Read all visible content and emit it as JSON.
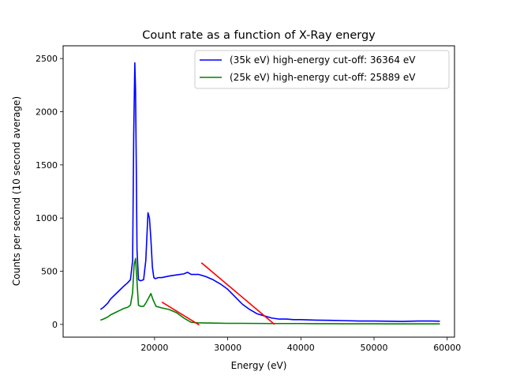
{
  "chart_data": {
    "type": "line",
    "title": "Count rate as a function of X-Ray energy",
    "xlabel": "Energy (eV)",
    "ylabel": "Counts per second (10 second average)",
    "xlim": [
      7500,
      61000
    ],
    "ylim": [
      -120,
      2620
    ],
    "xticks": [
      20000,
      30000,
      40000,
      50000,
      60000
    ],
    "yticks": [
      0,
      500,
      1000,
      1500,
      2000,
      2500
    ],
    "grid": false,
    "legend": "top-right",
    "series": [
      {
        "name": "(35k eV) high-energy cut-off: 36364 eV",
        "color": "#0000ff",
        "x": [
          12600,
          13000,
          13600,
          14000,
          14600,
          15200,
          15800,
          16300,
          16700,
          17000,
          17150,
          17300,
          17400,
          17500,
          17600,
          17800,
          18100,
          18500,
          18800,
          19100,
          19300,
          19500,
          19700,
          19900,
          20100,
          20500,
          21000,
          22000,
          23000,
          24000,
          24500,
          25000,
          26000,
          27000,
          28000,
          29000,
          30000,
          31000,
          32000,
          33000,
          34000,
          35000,
          36000,
          37000,
          38000,
          39000,
          40000,
          42000,
          44000,
          46000,
          48000,
          50000,
          52000,
          54000,
          56000,
          58000,
          59000
        ],
        "y": [
          140,
          160,
          200,
          240,
          280,
          320,
          360,
          390,
          420,
          600,
          1800,
          2460,
          2200,
          1500,
          700,
          420,
          410,
          420,
          600,
          1050,
          1000,
          800,
          540,
          440,
          430,
          440,
          440,
          455,
          465,
          475,
          490,
          470,
          470,
          450,
          420,
          380,
          330,
          260,
          190,
          140,
          100,
          80,
          60,
          50,
          50,
          45,
          45,
          40,
          38,
          35,
          32,
          32,
          30,
          28,
          32,
          32,
          30
        ]
      },
      {
        "name": "(25k eV) high-energy cut-off: 25889 eV",
        "color": "#008000",
        "x": [
          12600,
          13000,
          13600,
          14000,
          14600,
          15200,
          15800,
          16300,
          16700,
          17000,
          17200,
          17400,
          17600,
          17800,
          18100,
          18500,
          18800,
          19200,
          19500,
          19800,
          20200,
          21000,
          22000,
          23000,
          24000,
          25000,
          25889,
          28000,
          30000,
          32000,
          34000,
          36000,
          38000,
          40000,
          42000,
          44000,
          46000,
          48000,
          50000,
          52000,
          54000,
          56000,
          58000,
          59000
        ],
        "y": [
          40,
          50,
          70,
          90,
          110,
          130,
          150,
          160,
          180,
          300,
          560,
          620,
          400,
          180,
          170,
          170,
          200,
          250,
          290,
          230,
          170,
          155,
          140,
          110,
          60,
          20,
          15,
          12,
          10,
          10,
          9,
          8,
          8,
          8,
          7,
          7,
          6,
          6,
          6,
          5,
          5,
          5,
          5,
          5
        ]
      }
    ],
    "fit_lines": [
      {
        "color": "#ff0000",
        "x": [
          21000,
          26100
        ],
        "y": [
          210,
          -5
        ]
      },
      {
        "color": "#ff0000",
        "x": [
          26400,
          36400
        ],
        "y": [
          580,
          0
        ]
      }
    ]
  }
}
